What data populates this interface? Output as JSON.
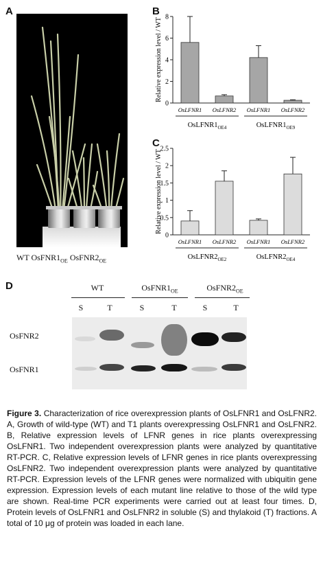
{
  "panels": {
    "a": "A",
    "b": "B",
    "c": "C",
    "d": "D"
  },
  "panel_a": {
    "caption_parts": [
      "WT",
      "OsFNR1",
      "OE",
      "OsFNR2",
      "OE"
    ]
  },
  "chart_data": [
    {
      "type": "bar",
      "panel": "B",
      "ylabel": "Relative expression level / WT",
      "ylim": [
        0,
        8
      ],
      "yticks": [
        "0",
        "2",
        "4",
        "6",
        "8"
      ],
      "categories": [
        "OsLFNR1",
        "OsLFNR2",
        "OsLFNR1",
        "OsLFNR2"
      ],
      "values": [
        5.6,
        0.65,
        4.2,
        0.25
      ],
      "errors": [
        2.4,
        0.12,
        1.1,
        0.05
      ],
      "groups": [
        {
          "name": "OsLFNR1",
          "sub": "OE4"
        },
        {
          "name": "OsLFNR1",
          "sub": "OE9"
        }
      ],
      "color": "#a6a6a6"
    },
    {
      "type": "bar",
      "panel": "C",
      "ylabel": "Relative expression level / WT",
      "ylim": [
        0,
        2.5
      ],
      "yticks": [
        "0",
        "0.5",
        "1",
        "1.5",
        "2",
        "2.5"
      ],
      "categories": [
        "OsLFNR1",
        "OsLFNR2",
        "OsLFNR1",
        "OsLFNR2"
      ],
      "values": [
        0.4,
        1.55,
        0.42,
        1.76
      ],
      "errors": [
        0.3,
        0.3,
        0.04,
        0.48
      ],
      "groups": [
        {
          "name": "OsLFNR2",
          "sub": "OE2"
        },
        {
          "name": "OsLFNR2",
          "sub": "OE4"
        }
      ],
      "color": "#dcdcdc"
    }
  ],
  "panel_d": {
    "groups": [
      {
        "name": "WT",
        "sub": ""
      },
      {
        "name": "OsFNR1",
        "sub": "OE"
      },
      {
        "name": "OsFNR2",
        "sub": "OE"
      }
    ],
    "lanes": [
      "S",
      "T",
      "S",
      "T",
      "S",
      "T"
    ],
    "rows": [
      "OsFNR2",
      "OsFNR1"
    ]
  },
  "caption": {
    "fig_label": "Figure 3.",
    "text": "Characterization of rice overexpression plants of OsLFNR1 and OsLFNR2. A, Growth of wild-type (WT) and T1 plants overexpressing OsLFNR1 and OsLFNR2. B, Relative expression levels of LFNR genes in rice plants overexpressing OsLFNR1. Two independent overexpression plants were analyzed by quantitative RT-PCR. C, Relative expression levels of LFNR genes in rice plants overexpressing OsLFNR2. Two independent overexpression plants were analyzed by quantitative RT-PCR. Expression levels of the LFNR genes were normalized with ubiquitin gene expression. Expression levels of each mutant line relative to those of the wild type are shown. Real-time PCR experiments were carried out at least four times. D, Protein levels of OsLFNR1 and OsLFNR2 in soluble (S) and thylakoid (T) fractions. A total of 10 μg of protein was loaded in each lane."
  }
}
